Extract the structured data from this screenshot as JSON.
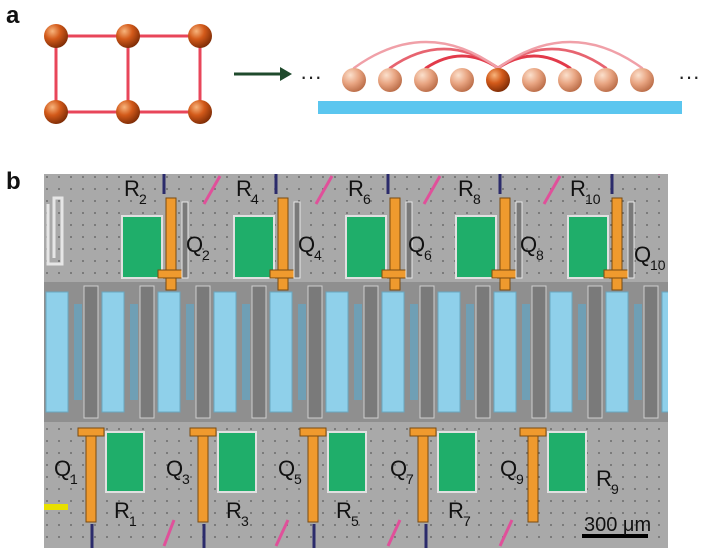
{
  "figure": {
    "panel_a_label": "a",
    "panel_b_label": "b",
    "ellipsis_left": "···",
    "ellipsis_right": "···",
    "scale_bar_label": "300 μm",
    "colors": {
      "atom": "#d35a1a",
      "atom_light": "#e4a07e",
      "bond": "#e8465a",
      "waveguide": "#5bc6ef",
      "arrow": "#1f4a2c",
      "resonator_green": "#1fae6a",
      "qubit_orange": "#ef9a2e",
      "coupler_blue": "#8fd0ea",
      "chip_bg": "#a9a9a9"
    },
    "top_labels": [
      {
        "R": "R",
        "r_sub": "2",
        "Q": "Q",
        "q_sub": "2"
      },
      {
        "R": "R",
        "r_sub": "4",
        "Q": "Q",
        "q_sub": "4"
      },
      {
        "R": "R",
        "r_sub": "6",
        "Q": "Q",
        "q_sub": "6"
      },
      {
        "R": "R",
        "r_sub": "8",
        "Q": "Q",
        "q_sub": "8"
      },
      {
        "R": "R",
        "r_sub": "10",
        "Q": "Q",
        "q_sub": "10"
      }
    ],
    "bottom_labels": [
      {
        "Q": "Q",
        "q_sub": "1",
        "R": "R",
        "r_sub": "1"
      },
      {
        "Q": "Q",
        "q_sub": "3",
        "R": "R",
        "r_sub": "3"
      },
      {
        "Q": "Q",
        "q_sub": "5",
        "R": "R",
        "r_sub": "5"
      },
      {
        "Q": "Q",
        "q_sub": "7",
        "R": "R",
        "r_sub": "7"
      },
      {
        "Q": "Q",
        "q_sub": "9",
        "R": "R",
        "r_sub": "9"
      }
    ]
  }
}
